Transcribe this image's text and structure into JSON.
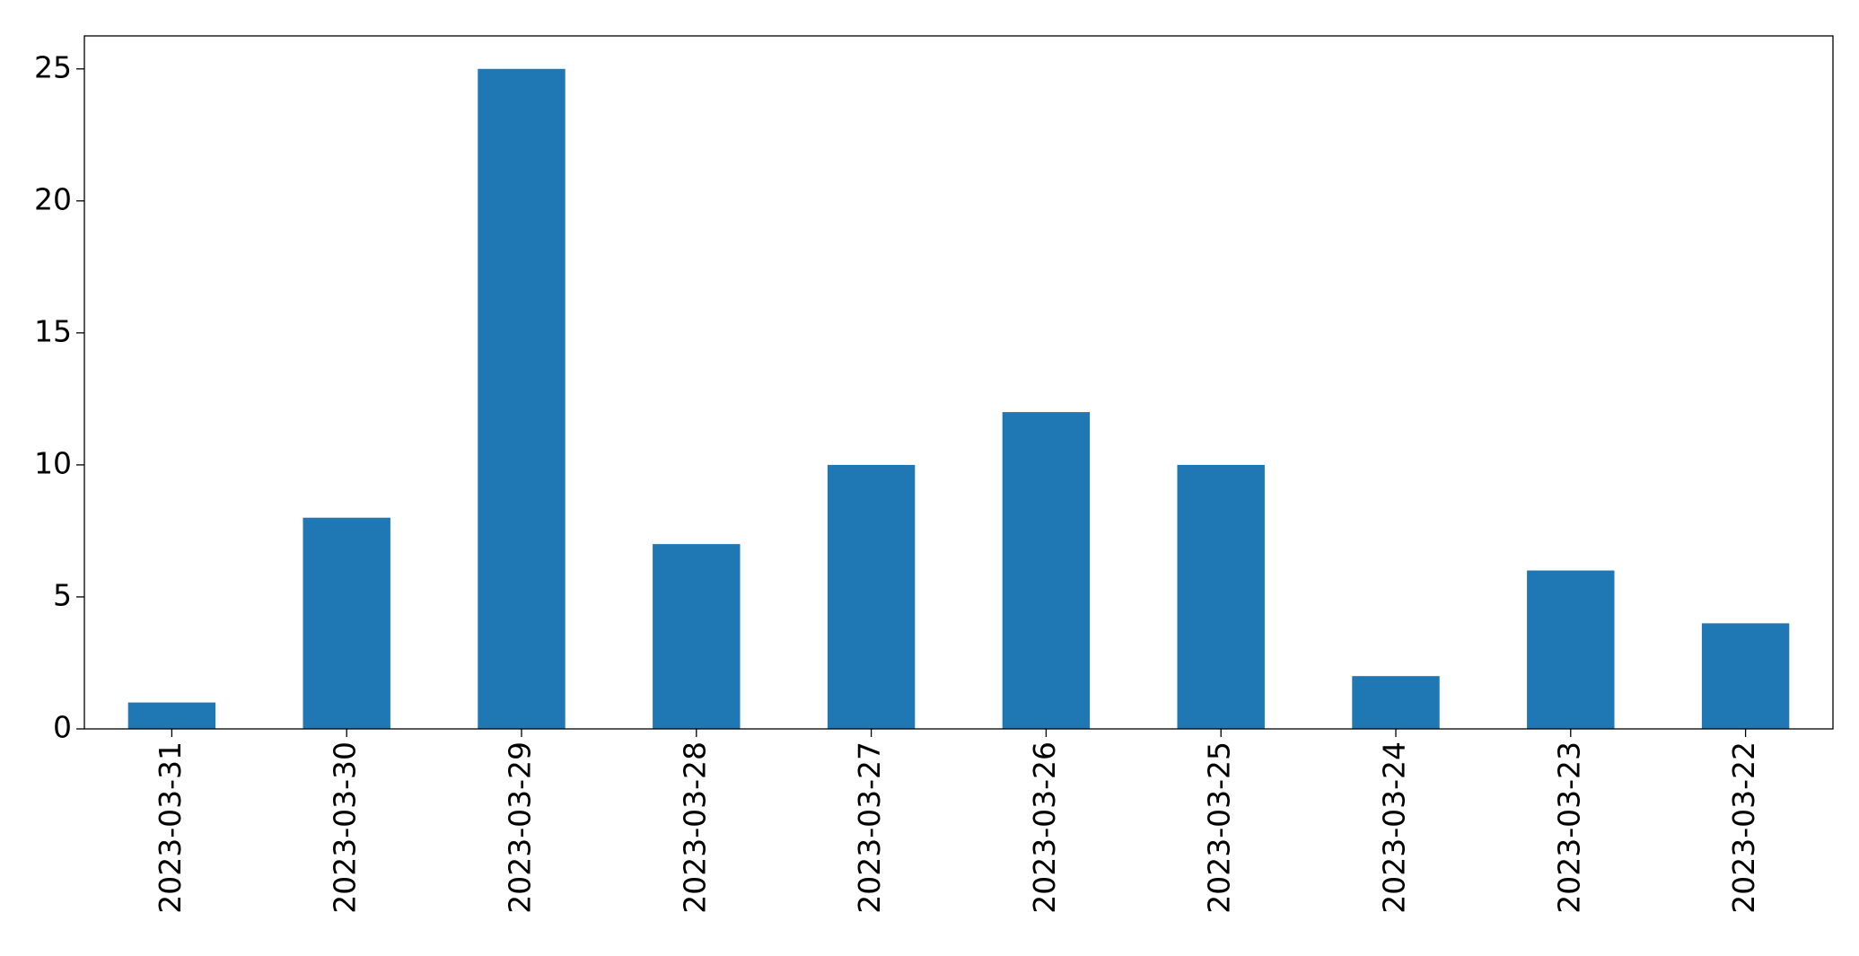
{
  "chart_data": {
    "type": "bar",
    "categories": [
      "2023-03-31",
      "2023-03-30",
      "2023-03-29",
      "2023-03-28",
      "2023-03-27",
      "2023-03-26",
      "2023-03-25",
      "2023-03-24",
      "2023-03-23",
      "2023-03-22"
    ],
    "values": [
      1,
      8,
      25,
      7,
      10,
      12,
      10,
      2,
      6,
      4
    ],
    "color": "#1f77b4",
    "ylim": [
      0,
      26.25
    ],
    "yticks": [
      0,
      5,
      10,
      15,
      20,
      25
    ],
    "grid": false
  }
}
